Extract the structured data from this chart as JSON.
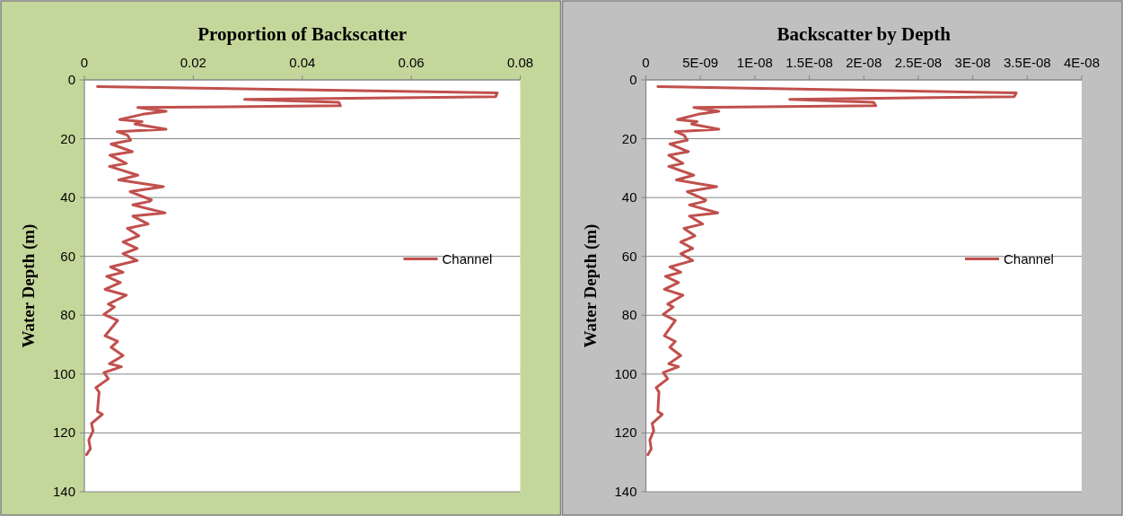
{
  "chart_data": [
    {
      "type": "line",
      "title": "Proportion of Backscatter",
      "ylabel": "Water Depth (m)",
      "xlim": [
        0,
        0.08
      ],
      "xticks": [
        0,
        0.02,
        0.04,
        0.06,
        0.08
      ],
      "ylim": [
        140,
        0
      ],
      "yticks": [
        0,
        20,
        40,
        60,
        80,
        100,
        120,
        140
      ],
      "grid": "y",
      "legend": "right",
      "series": [
        {
          "name": "Channel",
          "color": "#c0504d",
          "x": [
            0.0024,
            0.0758,
            0.0755,
            0.0294,
            0.0467,
            0.047,
            0.0098,
            0.015,
            0.0107,
            0.0065,
            0.0106,
            0.0093,
            0.015,
            0.006,
            0.0079,
            0.0085,
            0.0049,
            0.0088,
            0.0047,
            0.0077,
            0.0046,
            0.0098,
            0.0063,
            0.0145,
            0.0084,
            0.0123,
            0.012,
            0.0089,
            0.0148,
            0.0089,
            0.0117,
            0.0079,
            0.01,
            0.0071,
            0.0097,
            0.0071,
            0.0097,
            0.0048,
            0.0071,
            0.0041,
            0.0066,
            0.0038,
            0.0077,
            0.0044,
            0.0055,
            0.0036,
            0.0061,
            0.0038,
            0.0061,
            0.0049,
            0.0071,
            0.0046,
            0.0068,
            0.0036,
            0.0044,
            0.0021,
            0.0027,
            0.0024,
            0.0033,
            0.0013,
            0.0016,
            0.0008,
            0.0011,
            0.0004
          ],
          "values": [
            2.3,
            4.4,
            5.7,
            6.6,
            7.6,
            8.8,
            9.4,
            10.7,
            11.7,
            13.5,
            14.2,
            15,
            16.8,
            17.6,
            18.8,
            20.5,
            21.8,
            24.4,
            25.6,
            28.4,
            29.4,
            32.4,
            34,
            36.3,
            38,
            40.8,
            41.3,
            42.5,
            45.2,
            46.3,
            49,
            50.5,
            53,
            55.1,
            57.3,
            59.1,
            61.4,
            63.6,
            65.4,
            66.8,
            68.9,
            71.2,
            73.2,
            76.2,
            77.2,
            79.7,
            81.8,
            87,
            88.9,
            90.9,
            93.7,
            96.5,
            97.5,
            99.5,
            101.6,
            104.6,
            106.1,
            112.7,
            113.7,
            116.8,
            119.3,
            122.4,
            125.4,
            127.4
          ]
        }
      ]
    },
    {
      "type": "line",
      "title": "Backscatter by Depth",
      "ylabel": "Water Depth (m)",
      "xlim": [
        0,
        4e-08
      ],
      "xticks": [
        0,
        {
          "value": 5e-09,
          "label": "5E-09"
        },
        {
          "value": 1e-08,
          "label": "1E-08"
        },
        {
          "value": 1.5e-08,
          "label": "1.5E-08"
        },
        {
          "value": 2e-08,
          "label": "2E-08"
        },
        {
          "value": 2.5e-08,
          "label": "2.5E-08"
        },
        {
          "value": 3e-08,
          "label": "3E-08"
        },
        {
          "value": 3.5e-08,
          "label": "3.5E-08"
        },
        {
          "value": 4e-08,
          "label": "4E-08"
        }
      ],
      "ylim": [
        140,
        0
      ],
      "yticks": [
        0,
        20,
        40,
        60,
        80,
        100,
        120,
        140
      ],
      "grid": "y",
      "legend": "right",
      "series": [
        {
          "name": "Channel",
          "color": "#c0504d",
          "x": [
            1.1e-09,
            3.4e-08,
            3.38e-08,
            1.32e-08,
            2.09e-08,
            2.11e-08,
            4.4e-09,
            6.7e-09,
            4.8e-09,
            2.9e-09,
            4.7e-09,
            4.2e-09,
            6.7e-09,
            2.7e-09,
            3.5e-09,
            3.8e-09,
            2.2e-09,
            3.9e-09,
            2.1e-09,
            3.4e-09,
            2.1e-09,
            4.4e-09,
            2.8e-09,
            6.5e-09,
            3.8e-09,
            5.5e-09,
            5.4e-09,
            4e-09,
            6.6e-09,
            4e-09,
            5.2e-09,
            3.5e-09,
            4.5e-09,
            3.2e-09,
            4.3e-09,
            3.2e-09,
            4.3e-09,
            2.2e-09,
            3.2e-09,
            1.8e-09,
            3e-09,
            1.7e-09,
            3.4e-09,
            2e-09,
            2.5e-09,
            1.6e-09,
            2.7e-09,
            1.7e-09,
            2.7e-09,
            2.2e-09,
            3.2e-09,
            2.1e-09,
            3e-09,
            1.6e-09,
            2e-09,
            9.4e-10,
            1.2e-09,
            1.1e-09,
            1.5e-09,
            5.8e-10,
            7.2e-10,
            3.6e-10,
            4.9e-10,
            1.8e-10
          ],
          "values": [
            2.3,
            4.4,
            5.7,
            6.6,
            7.6,
            8.8,
            9.4,
            10.7,
            11.7,
            13.5,
            14.2,
            15,
            16.8,
            17.6,
            18.8,
            20.5,
            21.8,
            24.4,
            25.6,
            28.4,
            29.4,
            32.4,
            34,
            36.3,
            38,
            40.8,
            41.3,
            42.5,
            45.2,
            46.3,
            49,
            50.5,
            53,
            55.1,
            57.3,
            59.1,
            61.4,
            63.6,
            65.4,
            66.8,
            68.9,
            71.2,
            73.2,
            76.2,
            77.2,
            79.7,
            81.8,
            87,
            88.9,
            90.9,
            93.7,
            96.5,
            97.5,
            99.5,
            101.6,
            104.6,
            106.1,
            112.7,
            113.7,
            116.8,
            119.3,
            122.4,
            125.4,
            127.4
          ]
        }
      ]
    }
  ]
}
